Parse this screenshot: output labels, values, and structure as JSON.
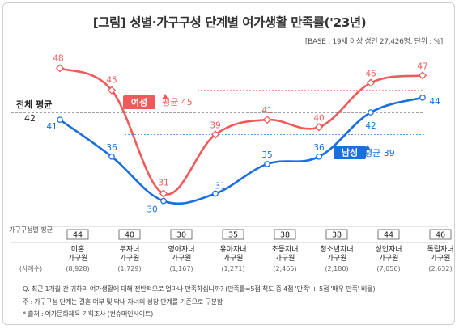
{
  "title": "[그림] 성별·가구구성 단계별 여가생활 만족률('23년)",
  "base_note": "[BASE : 19세 이상 성인 27,426명, 단위 : %]",
  "chart_data": {
    "type": "line",
    "title": "[그림] 성별·가구구성 단계별 여가생활 만족률('23년)",
    "categories": [
      [
        "미혼",
        "가구원"
      ],
      [
        "무자녀",
        "가구원"
      ],
      [
        "영아자녀",
        "가구원"
      ],
      [
        "유아자녀",
        "가구원"
      ],
      [
        "초등자녀",
        "가구원"
      ],
      [
        "청소년자녀",
        "가구원"
      ],
      [
        "성인자녀",
        "가구원"
      ],
      [
        "독립자녀",
        "가구원"
      ]
    ],
    "series": [
      {
        "name": "여성",
        "values": [
          48,
          45,
          31,
          39,
          41,
          40,
          46,
          47
        ],
        "color": "#f05a5b"
      },
      {
        "name": "남성",
        "values": [
          41,
          36,
          30,
          31,
          35,
          36,
          42,
          44
        ],
        "color": "#1a6fe0"
      }
    ],
    "averages": [
      {
        "series": "여성",
        "label": "평균 45",
        "value": 45,
        "color": "#f05a5b"
      },
      {
        "series": "남성",
        "label": "평균 39",
        "value": 39,
        "color": "#1a6fe0"
      }
    ],
    "overall_average": {
      "label": "전체 평균",
      "value": 42
    },
    "stage_average_label": "가구구성별 평균",
    "stage_averages": [
      44,
      40,
      30,
      35,
      38,
      38,
      44,
      46
    ],
    "sample_label": "(사례수)",
    "sample_sizes": [
      "(8,928)",
      "(1,729)",
      "(1,167)",
      "(1,271)",
      "(2,465)",
      "(2,180)",
      "(7,056)",
      "(2,632)"
    ],
    "ylim": [
      27,
      50
    ],
    "grid": false
  },
  "notes": [
    "Q. 최근 1개월 간 귀하의 여가생활에 대해 전반적으로 얼마나 만족하십니까? (만족률=5점 척도 중 4점 '만족' + 5점 '매우 만족' 비율)",
    "주 : 가구구성 단계는 결혼 여부 및 막내 자녀의 성장 단계를 기준으로 구분함",
    "* 출처 : 여가문화체육 기획조사 (컨슈머인사이트)"
  ]
}
